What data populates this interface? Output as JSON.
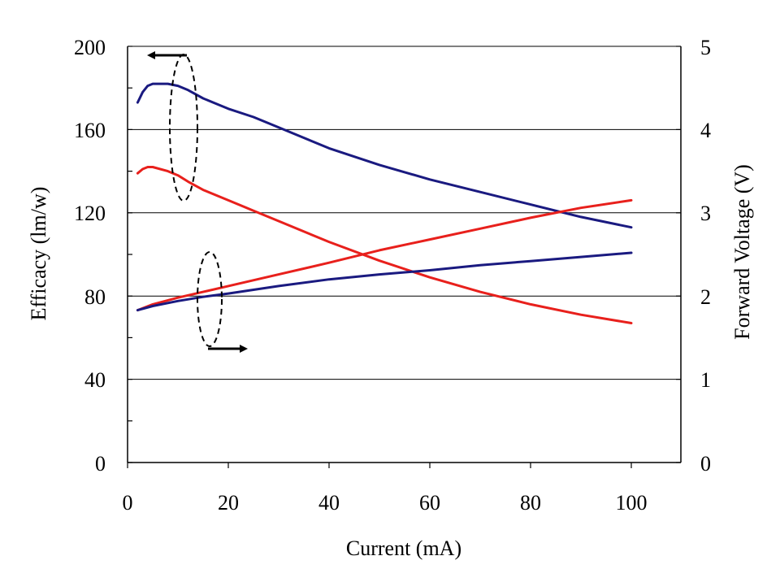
{
  "chart_data": {
    "type": "line",
    "title": "",
    "xlabel": "Current (mA)",
    "ylabel_left": "Efficacy (lm/w)",
    "ylabel_right": "Forward Voltage (V)",
    "xlim": [
      0,
      110
    ],
    "ylim_left": [
      0,
      200
    ],
    "ylim_right": [
      0,
      5
    ],
    "x_ticks": [
      "0",
      "20",
      "40",
      "60",
      "80",
      "100"
    ],
    "y_left_ticks": [
      "0",
      "40",
      "80",
      "120",
      "160",
      "200"
    ],
    "y_right_ticks": [
      "0",
      "1",
      "2",
      "3",
      "4",
      "5"
    ],
    "grid": "horizontal",
    "series": [
      {
        "axis": "left",
        "color": "#1a1a80",
        "points": [
          [
            2,
            173
          ],
          [
            3,
            178
          ],
          [
            4,
            181
          ],
          [
            5,
            182
          ],
          [
            8,
            182
          ],
          [
            10,
            181
          ],
          [
            12,
            179
          ],
          [
            15,
            175
          ],
          [
            20,
            170
          ],
          [
            25,
            166
          ],
          [
            30,
            161
          ],
          [
            40,
            151
          ],
          [
            50,
            143
          ],
          [
            60,
            136
          ],
          [
            70,
            130
          ],
          [
            80,
            124
          ],
          [
            90,
            118
          ],
          [
            100,
            113
          ]
        ]
      },
      {
        "axis": "left",
        "color": "#e8201c",
        "points": [
          [
            2,
            139
          ],
          [
            3,
            141
          ],
          [
            4,
            142
          ],
          [
            5,
            142
          ],
          [
            8,
            140
          ],
          [
            10,
            138
          ],
          [
            12,
            135
          ],
          [
            15,
            131
          ],
          [
            20,
            126
          ],
          [
            25,
            121
          ],
          [
            30,
            116
          ],
          [
            40,
            106
          ],
          [
            50,
            97
          ],
          [
            60,
            89
          ],
          [
            70,
            82
          ],
          [
            80,
            76
          ],
          [
            90,
            71
          ],
          [
            100,
            67
          ]
        ]
      },
      {
        "axis": "right",
        "color": "#e8201c",
        "points": [
          [
            2,
            1.83
          ],
          [
            5,
            1.9
          ],
          [
            10,
            1.98
          ],
          [
            15,
            2.05
          ],
          [
            20,
            2.12
          ],
          [
            30,
            2.26
          ],
          [
            40,
            2.4
          ],
          [
            50,
            2.55
          ],
          [
            60,
            2.68
          ],
          [
            70,
            2.81
          ],
          [
            80,
            2.94
          ],
          [
            90,
            3.06
          ],
          [
            100,
            3.15
          ]
        ]
      },
      {
        "axis": "right",
        "color": "#1a1a80",
        "points": [
          [
            2,
            1.83
          ],
          [
            5,
            1.88
          ],
          [
            10,
            1.94
          ],
          [
            15,
            1.99
          ],
          [
            20,
            2.03
          ],
          [
            30,
            2.12
          ],
          [
            40,
            2.2
          ],
          [
            50,
            2.26
          ],
          [
            60,
            2.31
          ],
          [
            70,
            2.37
          ],
          [
            80,
            2.42
          ],
          [
            90,
            2.47
          ],
          [
            100,
            2.52
          ]
        ]
      }
    ]
  }
}
